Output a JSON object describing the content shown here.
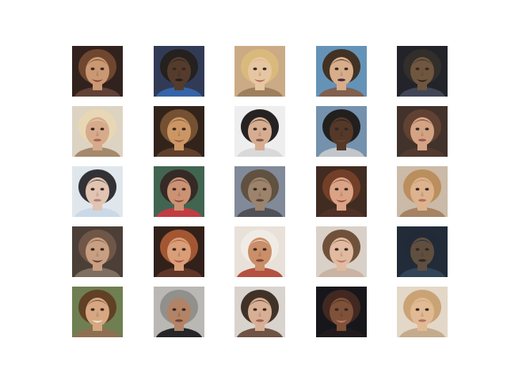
{
  "grid": {
    "rows": 5,
    "cols": 5
  },
  "tiles": [
    {
      "bg": "#2a1a14",
      "hair": "#6a3f26",
      "skin": "#c8946d",
      "cloth": "#5a3a30",
      "mouth": "#8a3a34",
      "smile": true
    },
    {
      "bg": "#2a3350",
      "hair": "#1c1816",
      "skin": "#4e3424",
      "cloth": "#2d5fa5",
      "mouth": "#1e1410",
      "smile": false
    },
    {
      "bg": "#c9a880",
      "hair": "#d9b777",
      "skin": "#e5c49e",
      "cloth": "#9a7a58",
      "mouth": "#b5605a",
      "smile": true
    },
    {
      "bg": "#5f8fb6",
      "hair": "#3a2a1c",
      "skin": "#d7aa86",
      "cloth": "#7b5a48",
      "mouth": "#3a1f34",
      "smile": false
    },
    {
      "bg": "#1a1c22",
      "hair": "#2a2622",
      "skin": "#6a5038",
      "cloth": "#3a3e50",
      "mouth": "#2a1a12",
      "smile": true
    },
    {
      "bg": "#dcd2c0",
      "hair": "#e8d6b2",
      "skin": "#d5a887",
      "cloth": "#a28568",
      "mouth": "#a8584a",
      "smile": false
    },
    {
      "bg": "#2a1c12",
      "hair": "#6f4a2a",
      "skin": "#c9925e",
      "cloth": "#5a3824",
      "mouth": "#9a4e3e",
      "smile": true
    },
    {
      "bg": "#eeeeee",
      "hair": "#1e1a1a",
      "skin": "#d6aa8e",
      "cloth": "#d8d8d8",
      "mouth": "#7a4a44",
      "smile": false
    },
    {
      "bg": "#6f8eaa",
      "hair": "#1a1616",
      "skin": "#4e3020",
      "cloth": "#c0c4c8",
      "mouth": "#6a3a2e",
      "smile": true
    },
    {
      "bg": "#3a2a24",
      "hair": "#5a3a2a",
      "skin": "#d3a07e",
      "cloth": "#4a3228",
      "mouth": "#9a4e4a",
      "smile": false
    },
    {
      "bg": "#dfe6ec",
      "hair": "#2a2a2e",
      "skin": "#e0c2ae",
      "cloth": "#c8d8e6",
      "mouth": "#b07a70",
      "smile": false
    },
    {
      "bg": "#3a5f4a",
      "hair": "#2e221e",
      "skin": "#c98e6e",
      "cloth": "#c0363c",
      "mouth": "#8a3a30",
      "smile": true
    },
    {
      "bg": "#7c8694",
      "hair": "#5a4a3a",
      "skin": "#9a7e66",
      "cloth": "#4a4a52",
      "mouth": "#4a3a30",
      "smile": false
    },
    {
      "bg": "#3a2418",
      "hair": "#6e3820",
      "skin": "#d9a080",
      "cloth": "#4a2a1e",
      "mouth": "#9a3a3a",
      "smile": true
    },
    {
      "bg": "#c8b8a4",
      "hair": "#b98a58",
      "skin": "#dcb08a",
      "cloth": "#a27e5e",
      "mouth": "#b2625a",
      "smile": false
    },
    {
      "bg": "#443830",
      "hair": "#6a5040",
      "skin": "#c69c7c",
      "cloth": "#7a6a5a",
      "mouth": "#5a2e28",
      "smile": true
    },
    {
      "bg": "#2a1812",
      "hair": "#a0502a",
      "skin": "#d89a72",
      "cloth": "#5a2e20",
      "mouth": "#a44a3c",
      "smile": true
    },
    {
      "bg": "#e8e0d8",
      "hair": "#f0ece4",
      "skin": "#c88a62",
      "cloth": "#b24a3a",
      "mouth": "#7a3a30",
      "smile": false
    },
    {
      "bg": "#d8cfc6",
      "hair": "#6a4a34",
      "skin": "#e0b89c",
      "cloth": "#c8b0a0",
      "mouth": "#b06a60",
      "smile": true
    },
    {
      "bg": "#182430",
      "hair": "#1a2230",
      "skin": "#5a4838",
      "cloth": "#2a3e52",
      "mouth": "#2a1e18",
      "smile": false
    },
    {
      "bg": "#6a7a4a",
      "hair": "#5a3a1e",
      "skin": "#d6a47c",
      "cloth": "#8a6a4a",
      "mouth": "#f2e6dc",
      "smile": true
    },
    {
      "bg": "#b8b6b2",
      "hair": "#8e8c88",
      "skin": "#b07e60",
      "cloth": "#1e1e20",
      "mouth": "#6a3a32",
      "smile": false
    },
    {
      "bg": "#d8d2cc",
      "hair": "#3a2a20",
      "skin": "#d7ac90",
      "cloth": "#6a4e3e",
      "mouth": "#9a5a4e",
      "smile": false
    },
    {
      "bg": "#0e0e12",
      "hair": "#3a2018",
      "skin": "#7a4a30",
      "cloth": "#1a1214",
      "mouth": "#c27a6a",
      "smile": true
    },
    {
      "bg": "#e2d6c6",
      "hair": "#c8a070",
      "skin": "#e0b890",
      "cloth": "#c2a888",
      "mouth": "#b06a5e",
      "smile": false
    }
  ]
}
